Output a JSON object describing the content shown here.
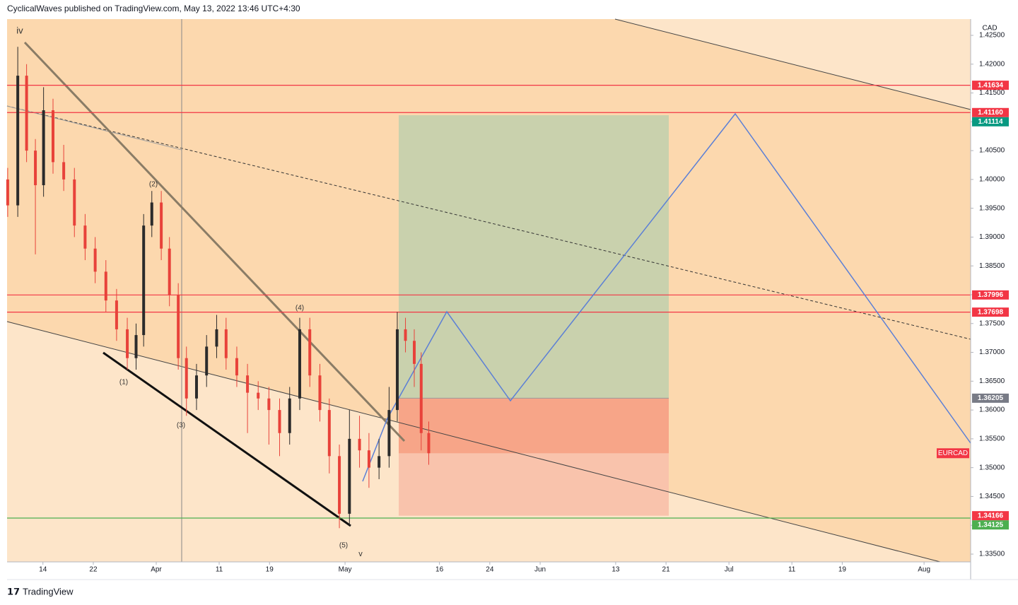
{
  "header": {
    "byline": "CyclicalWaves published on TradingView.com, May 13, 2022 13:46 UTC+4:30",
    "brand": "TradingView"
  },
  "chart_data": {
    "type": "candlestick",
    "symbol": "EURCAD",
    "currency": "CAD",
    "x": [
      7.4,
      9.0,
      10.4,
      11.8,
      13.1,
      14.6,
      16.3,
      18.0,
      19.7,
      21.3,
      23.0,
      24.7,
      26.4,
      27.8,
      29.0,
      30.3,
      31.8,
      33.1,
      34.5,
      35.8,
      37.4,
      39.0,
      40.6,
      42.1,
      43.8,
      45.5,
      47.2,
      48.9,
      50.6,
      52.2,
      53.8,
      55.4,
      57.0,
      58.5,
      60.1,
      61.7,
      63.3,
      64.8,
      66.4,
      68.0,
      69.3,
      70.6,
      72.0,
      73.1,
      74.3
    ],
    "open": [
      1.4,
      1.3955,
      1.418,
      1.405,
      1.399,
      1.412,
      1.403,
      1.4,
      1.392,
      1.388,
      1.384,
      1.379,
      1.374,
      1.369,
      1.373,
      1.392,
      1.396,
      1.388,
      1.38,
      1.369,
      1.362,
      1.366,
      1.371,
      1.374,
      1.369,
      1.366,
      1.363,
      1.362,
      1.36,
      1.356,
      1.362,
      1.374,
      1.366,
      1.36,
      1.352,
      1.342,
      1.355,
      1.353,
      1.35,
      1.352,
      1.36,
      1.374,
      1.372,
      1.368,
      1.356
    ],
    "high": [
      1.402,
      1.423,
      1.42,
      1.407,
      1.416,
      1.414,
      1.406,
      1.402,
      1.394,
      1.39,
      1.386,
      1.381,
      1.376,
      1.375,
      1.394,
      1.398,
      1.398,
      1.39,
      1.382,
      1.371,
      1.368,
      1.373,
      1.3765,
      1.376,
      1.371,
      1.368,
      1.365,
      1.364,
      1.362,
      1.364,
      1.376,
      1.376,
      1.368,
      1.362,
      1.354,
      1.36,
      1.359,
      1.356,
      1.355,
      1.364,
      1.377,
      1.376,
      1.374,
      1.37,
      1.358
    ],
    "low": [
      1.3935,
      1.3935,
      1.403,
      1.387,
      1.397,
      1.401,
      1.398,
      1.39,
      1.386,
      1.382,
      1.377,
      1.372,
      1.367,
      1.367,
      1.371,
      1.39,
      1.386,
      1.378,
      1.367,
      1.359,
      1.36,
      1.364,
      1.369,
      1.367,
      1.364,
      1.356,
      1.36,
      1.354,
      1.352,
      1.354,
      1.36,
      1.364,
      1.358,
      1.349,
      1.3395,
      1.34,
      1.35,
      1.3465,
      1.348,
      1.35,
      1.358,
      1.37,
      1.364,
      1.353,
      1.3505
    ],
    "close": [
      1.3955,
      1.418,
      1.405,
      1.399,
      1.412,
      1.403,
      1.4,
      1.392,
      1.388,
      1.384,
      1.379,
      1.374,
      1.369,
      1.373,
      1.392,
      1.396,
      1.388,
      1.38,
      1.369,
      1.362,
      1.366,
      1.371,
      1.374,
      1.369,
      1.366,
      1.363,
      1.362,
      1.36,
      1.356,
      1.362,
      1.374,
      1.366,
      1.36,
      1.352,
      1.342,
      1.355,
      1.353,
      1.35,
      1.352,
      1.36,
      1.374,
      1.372,
      1.368,
      1.356,
      1.3525
    ],
    "up_color": "#2b2b2b",
    "down_color": "#e8423a",
    "xlim": [
      7.3,
      160.4
    ],
    "xticks": [
      {
        "value": 13,
        "label": "14"
      },
      {
        "value": 21,
        "label": "22"
      },
      {
        "value": 31,
        "label": "Apr"
      },
      {
        "value": 41,
        "label": "11"
      },
      {
        "value": 49,
        "label": "19"
      },
      {
        "value": 61,
        "label": "May"
      },
      {
        "value": 76,
        "label": "16"
      },
      {
        "value": 84,
        "label": "24"
      },
      {
        "value": 92,
        "label": "Jun"
      },
      {
        "value": 104,
        "label": "13"
      },
      {
        "value": 112,
        "label": "21"
      },
      {
        "value": 122,
        "label": "Jul"
      },
      {
        "value": 132,
        "label": "11"
      },
      {
        "value": 140,
        "label": "19"
      },
      {
        "value": 153,
        "label": "Aug"
      }
    ],
    "ylim": [
      1.33365,
      1.42782
    ],
    "yticks": [
      {
        "value": 1.335,
        "label": "1.33500"
      },
      {
        "value": 1.34,
        "label": "1.34000"
      },
      {
        "value": 1.345,
        "label": "1.34500"
      },
      {
        "value": 1.35,
        "label": "1.35000"
      },
      {
        "value": 1.355,
        "label": "1.35500"
      },
      {
        "value": 1.36,
        "label": "1.36000"
      },
      {
        "value": 1.365,
        "label": "1.36500"
      },
      {
        "value": 1.37,
        "label": "1.37000"
      },
      {
        "value": 1.375,
        "label": "1.37500"
      },
      {
        "value": 1.38,
        "label": "1.38000"
      },
      {
        "value": 1.385,
        "label": "1.38500"
      },
      {
        "value": 1.39,
        "label": "1.39000"
      },
      {
        "value": 1.395,
        "label": "1.39500"
      },
      {
        "value": 1.4,
        "label": "1.40000"
      },
      {
        "value": 1.405,
        "label": "1.40500"
      },
      {
        "value": 1.41,
        "label": "1.41000"
      },
      {
        "value": 1.415,
        "label": "1.41500"
      },
      {
        "value": 1.42,
        "label": "1.42000"
      },
      {
        "value": 1.425,
        "label": "1.42500"
      }
    ],
    "price_levels": [
      {
        "value": 1.41634,
        "label": "1.41634",
        "color": "#f23645",
        "line": true
      },
      {
        "value": 1.4116,
        "label": "1.41160",
        "color": "#f23645",
        "line": true
      },
      {
        "value": 1.41114,
        "label": "1.41114",
        "color": "#089981",
        "line": false
      },
      {
        "value": 1.37996,
        "label": "1.37996",
        "color": "#f23645",
        "line": true
      },
      {
        "value": 1.37698,
        "label": "1.37698",
        "color": "#f23645",
        "line": true
      },
      {
        "value": 1.36205,
        "label": "1.36205",
        "color": "#787b86",
        "line": false
      },
      {
        "value": 1.34166,
        "label": "1.34166",
        "color": "#f23645",
        "line": false
      },
      {
        "value": 1.34125,
        "label": "1.34125",
        "color": "#4caf50",
        "line": true
      }
    ],
    "annotations": [
      "iv",
      "(2)",
      "(4)",
      "(1)",
      "(3)",
      "(5)",
      "v"
    ]
  }
}
